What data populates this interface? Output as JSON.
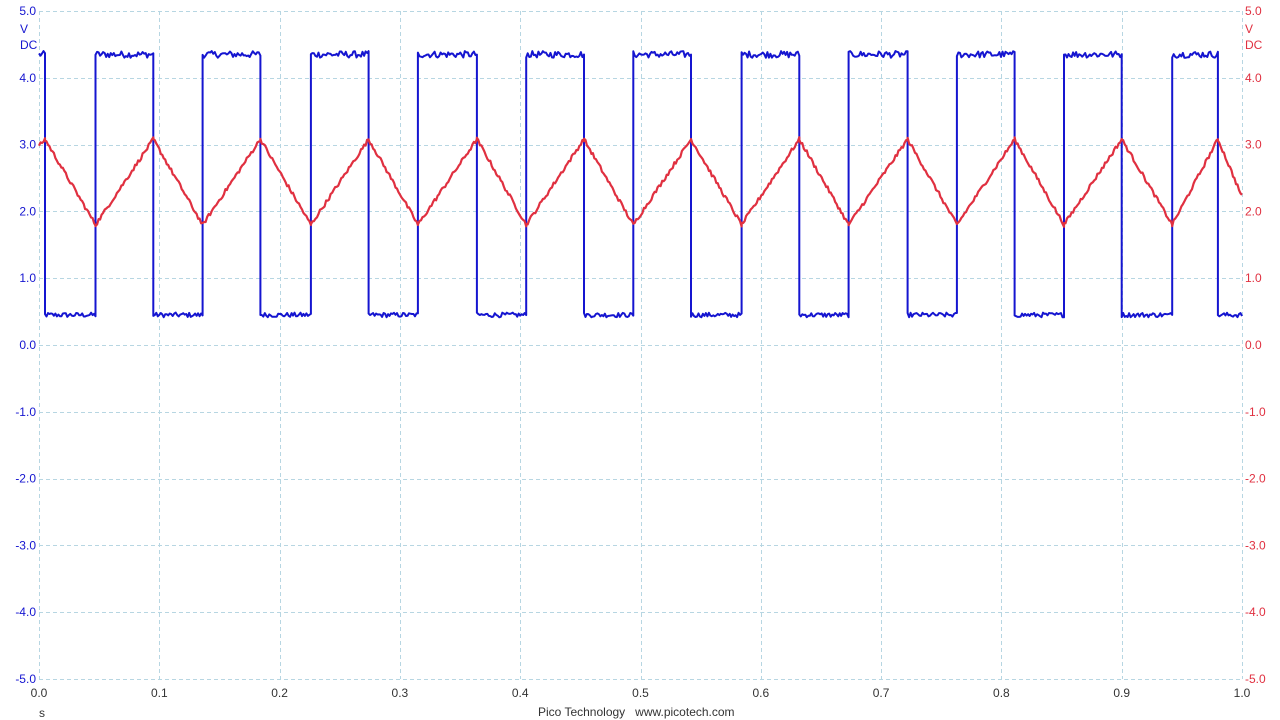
{
  "chart_data": {
    "type": "line",
    "title": "",
    "xlabel": "s",
    "xlim": [
      0.0,
      1.0
    ],
    "x_ticks": [
      "0.0",
      "0.1",
      "0.2",
      "0.3",
      "0.4",
      "0.5",
      "0.6",
      "0.7",
      "0.8",
      "0.9",
      "1.0"
    ],
    "grid": true,
    "left_axis": {
      "unit": "V",
      "coupling": "DC",
      "ylim": [
        -5.0,
        5.0
      ],
      "tick_labels": [
        "5.0",
        "4.0",
        "3.0",
        "2.0",
        "1.0",
        "0.0",
        "-1.0",
        "-2.0",
        "-3.0",
        "-4.0",
        "-5.0"
      ],
      "color": "#1515d0"
    },
    "right_axis": {
      "unit": "V",
      "coupling": "DC",
      "ylim": [
        -5.0,
        5.0
      ],
      "tick_labels": [
        "5.0",
        "4.0",
        "3.0",
        "2.0",
        "1.0",
        "0.0",
        "-1.0",
        "-2.0",
        "-3.0",
        "-4.0",
        "-5.0"
      ],
      "color": "#e03040"
    },
    "series": [
      {
        "kind": "square",
        "axis": "left",
        "color": "#1515d0",
        "high": 4.35,
        "low": 0.45,
        "edges": [
          0.005,
          0.047,
          0.095,
          0.136,
          0.184,
          0.226,
          0.274,
          0.315,
          0.364,
          0.405,
          0.453,
          0.494,
          0.542,
          0.584,
          0.632,
          0.673,
          0.722,
          0.763,
          0.811,
          0.852,
          0.9,
          0.942,
          0.98
        ]
      },
      {
        "kind": "triangle",
        "axis": "right",
        "color": "#e03040",
        "x": [
          0.0,
          0.005,
          0.047,
          0.095,
          0.136,
          0.184,
          0.226,
          0.274,
          0.315,
          0.364,
          0.405,
          0.453,
          0.494,
          0.542,
          0.584,
          0.632,
          0.673,
          0.722,
          0.763,
          0.811,
          0.852,
          0.9,
          0.942,
          0.98,
          1.0
        ],
        "y": [
          2.98,
          3.08,
          1.8,
          3.08,
          1.8,
          3.08,
          1.8,
          3.08,
          1.8,
          3.08,
          1.8,
          3.08,
          1.8,
          3.08,
          1.8,
          3.08,
          1.8,
          3.08,
          1.8,
          3.08,
          1.8,
          3.08,
          1.8,
          3.08,
          2.22
        ]
      }
    ]
  },
  "footer": {
    "brand": "Pico Technology",
    "url": "www.picotech.com"
  }
}
